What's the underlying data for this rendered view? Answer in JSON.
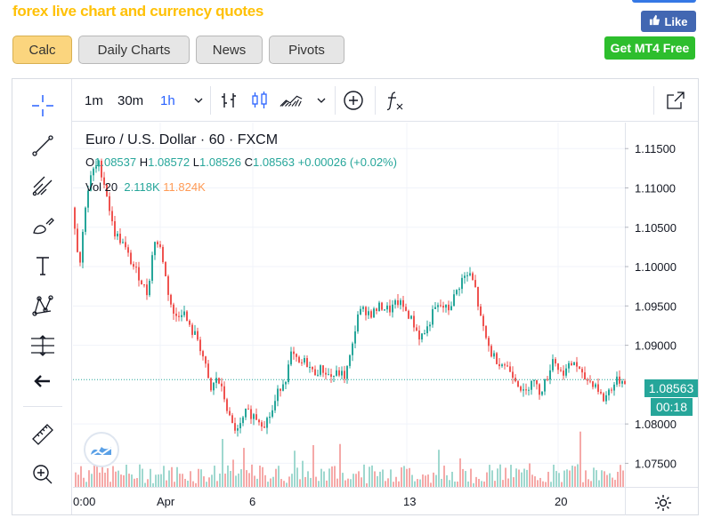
{
  "site": {
    "title": "forex live chart and currency quotes"
  },
  "social": {
    "like_label": "Like",
    "mt4_label": "Get MT4 Free"
  },
  "tabs": [
    {
      "label": "Calc",
      "active": true
    },
    {
      "label": "Daily Charts",
      "active": false
    },
    {
      "label": "News",
      "active": false
    },
    {
      "label": "Pivots",
      "active": false
    }
  ],
  "toolbar": {
    "timeframes": [
      "1m",
      "30m",
      "1h"
    ],
    "selected_timeframe": "1h",
    "icons": [
      "chevron-down-icon",
      "bar-chart-icon",
      "candlestick-icon",
      "area-chart-icon",
      "chevron-down-icon",
      "add-circle-icon",
      "function-icon",
      "fullscreen-icon"
    ]
  },
  "left_tools": [
    "crosshair-icon",
    "trend-line-icon",
    "pitchfork-icon",
    "brush-icon",
    "text-icon",
    "pattern-icon",
    "measure-icon",
    "back-arrow-icon",
    "ruler-icon",
    "zoom-in-icon"
  ],
  "legend": {
    "title": "Euro / U.S. Dollar · 60 · FXCM",
    "open_label": "O",
    "open": "1.08537",
    "high_label": "H",
    "high": "1.08572",
    "low_label": "L",
    "low": "1.08526",
    "close_label": "C",
    "close": "1.08563",
    "change": "+0.00026 (+0.02%)",
    "vol_label": "Vol 20",
    "vol_value": "2.118K",
    "vol_ma": "11.824K"
  },
  "price_axis": {
    "ticks": [
      "1.11500",
      "1.11000",
      "1.10500",
      "1.10000",
      "1.09500",
      "1.09000",
      "1.08000",
      "1.07500"
    ],
    "current_price": "1.08563",
    "countdown": "00:18"
  },
  "time_axis": {
    "ticks": [
      "0:00",
      "Apr",
      "6",
      "13",
      "20"
    ]
  },
  "colors": {
    "up": "#26a69a",
    "down": "#ef5350",
    "accent": "#2962ff"
  },
  "chart_data": {
    "type": "candlestick",
    "symbol": "Euro / U.S. Dollar",
    "timeframe": "60",
    "ylim": [
      1.072,
      1.1183
    ],
    "path_points": [
      {
        "x": 0,
        "y": 1.1075
      },
      {
        "x": 8,
        "y": 1.1
      },
      {
        "x": 15,
        "y": 1.1085
      },
      {
        "x": 22,
        "y": 1.112
      },
      {
        "x": 30,
        "y": 1.113
      },
      {
        "x": 38,
        "y": 1.1095
      },
      {
        "x": 46,
        "y": 1.1045
      },
      {
        "x": 56,
        "y": 1.103
      },
      {
        "x": 66,
        "y": 1.1005
      },
      {
        "x": 76,
        "y": 1.0985
      },
      {
        "x": 84,
        "y": 1.0965
      },
      {
        "x": 92,
        "y": 1.1035
      },
      {
        "x": 100,
        "y": 1.102
      },
      {
        "x": 106,
        "y": 1.0975
      },
      {
        "x": 114,
        "y": 1.0935
      },
      {
        "x": 124,
        "y": 1.0945
      },
      {
        "x": 132,
        "y": 1.092
      },
      {
        "x": 140,
        "y": 1.091
      },
      {
        "x": 148,
        "y": 1.088
      },
      {
        "x": 155,
        "y": 1.084
      },
      {
        "x": 162,
        "y": 1.086
      },
      {
        "x": 170,
        "y": 1.0835
      },
      {
        "x": 178,
        "y": 1.08
      },
      {
        "x": 186,
        "y": 1.079
      },
      {
        "x": 195,
        "y": 1.0815
      },
      {
        "x": 205,
        "y": 1.081
      },
      {
        "x": 215,
        "y": 1.08
      },
      {
        "x": 224,
        "y": 1.0815
      },
      {
        "x": 232,
        "y": 1.0845
      },
      {
        "x": 240,
        "y": 1.086
      },
      {
        "x": 246,
        "y": 1.089
      },
      {
        "x": 254,
        "y": 1.0875
      },
      {
        "x": 262,
        "y": 1.088
      },
      {
        "x": 270,
        "y": 1.0865
      },
      {
        "x": 280,
        "y": 1.087
      },
      {
        "x": 290,
        "y": 1.086
      },
      {
        "x": 300,
        "y": 1.0865
      },
      {
        "x": 306,
        "y": 1.086
      },
      {
        "x": 314,
        "y": 1.0895
      },
      {
        "x": 320,
        "y": 1.094
      },
      {
        "x": 328,
        "y": 1.0945
      },
      {
        "x": 336,
        "y": 1.094
      },
      {
        "x": 346,
        "y": 1.095
      },
      {
        "x": 356,
        "y": 1.0945
      },
      {
        "x": 366,
        "y": 1.0955
      },
      {
        "x": 374,
        "y": 1.0945
      },
      {
        "x": 382,
        "y": 1.093
      },
      {
        "x": 390,
        "y": 1.091
      },
      {
        "x": 398,
        "y": 1.092
      },
      {
        "x": 406,
        "y": 1.0945
      },
      {
        "x": 414,
        "y": 1.095
      },
      {
        "x": 422,
        "y": 1.0945
      },
      {
        "x": 430,
        "y": 1.0965
      },
      {
        "x": 438,
        "y": 1.0985
      },
      {
        "x": 446,
        "y": 1.099
      },
      {
        "x": 452,
        "y": 1.0975
      },
      {
        "x": 458,
        "y": 1.0935
      },
      {
        "x": 464,
        "y": 1.091
      },
      {
        "x": 470,
        "y": 1.089
      },
      {
        "x": 478,
        "y": 1.088
      },
      {
        "x": 486,
        "y": 1.0875
      },
      {
        "x": 494,
        "y": 1.0865
      },
      {
        "x": 502,
        "y": 1.085
      },
      {
        "x": 508,
        "y": 1.0835
      },
      {
        "x": 516,
        "y": 1.086
      },
      {
        "x": 524,
        "y": 1.084
      },
      {
        "x": 532,
        "y": 1.0855
      },
      {
        "x": 540,
        "y": 1.0885
      },
      {
        "x": 548,
        "y": 1.0865
      },
      {
        "x": 556,
        "y": 1.087
      },
      {
        "x": 564,
        "y": 1.088
      },
      {
        "x": 572,
        "y": 1.086
      },
      {
        "x": 580,
        "y": 1.0855
      },
      {
        "x": 588,
        "y": 1.085
      },
      {
        "x": 596,
        "y": 1.083
      },
      {
        "x": 604,
        "y": 1.0845
      },
      {
        "x": 612,
        "y": 1.0855
      },
      {
        "x": 620,
        "y": 1.0856
      }
    ]
  }
}
